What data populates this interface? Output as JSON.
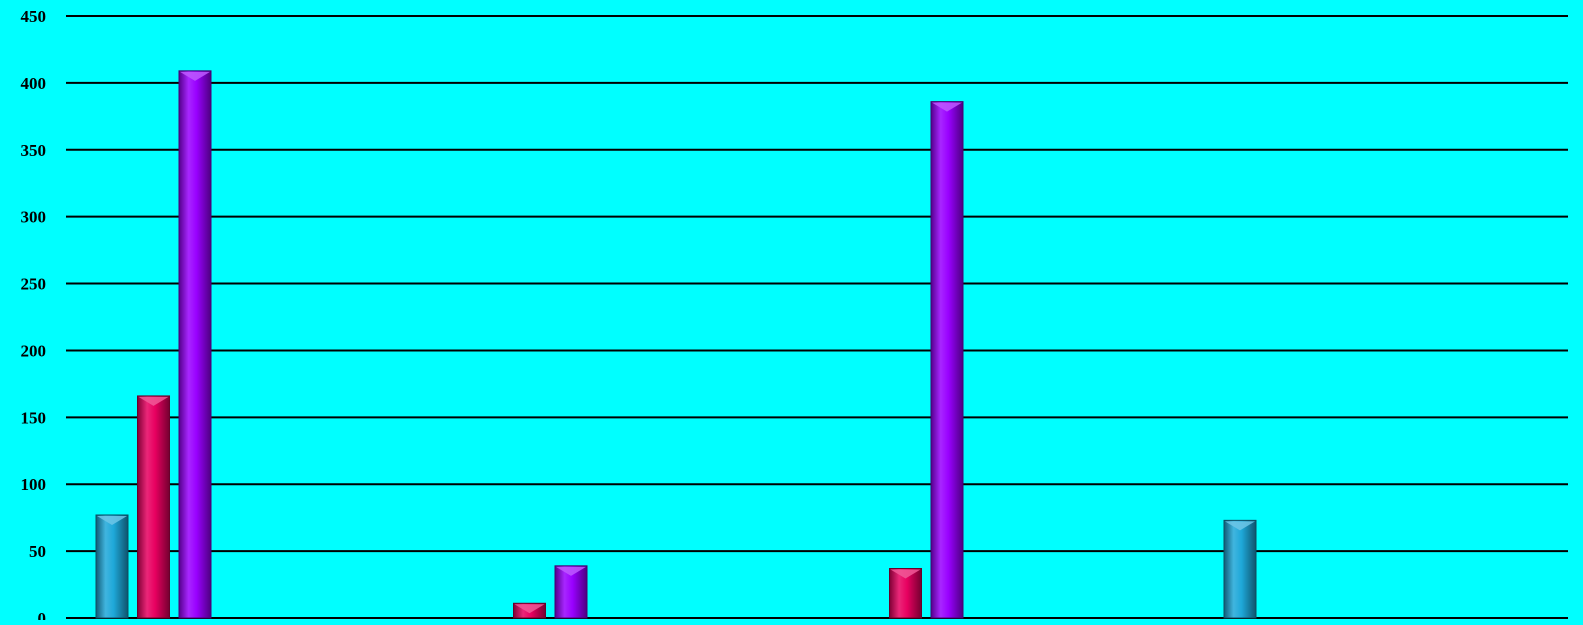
{
  "chart_data": {
    "type": "bar",
    "categories": [
      "",
      "",
      "",
      "",
      "",
      "",
      "",
      "",
      "",
      ""
    ],
    "series": [
      {
        "color": "#1ea8d9",
        "values": [
          77,
          null,
          null,
          null,
          null,
          null,
          73,
          null,
          null,
          null
        ]
      },
      {
        "color": "#e80060",
        "values": [
          166,
          null,
          11,
          null,
          37,
          null,
          null,
          null,
          null,
          null
        ]
      },
      {
        "color": "#9900ff",
        "values": [
          409,
          null,
          39,
          null,
          386,
          null,
          null,
          null,
          null,
          null
        ]
      }
    ],
    "title": "",
    "xlabel": "",
    "ylabel": "",
    "ylim": [
      0,
      450
    ],
    "yticks": [
      "0",
      "50",
      "100",
      "150",
      "200",
      "250",
      "300",
      "350",
      "400",
      "450"
    ],
    "grid": true,
    "background": "#00ffff",
    "gridline_color": "#000000"
  }
}
